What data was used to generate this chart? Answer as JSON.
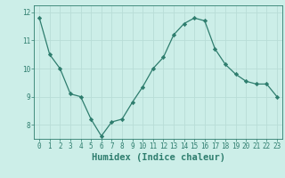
{
  "x": [
    0,
    1,
    2,
    3,
    4,
    5,
    6,
    7,
    8,
    9,
    10,
    11,
    12,
    13,
    14,
    15,
    16,
    17,
    18,
    19,
    20,
    21,
    22,
    23
  ],
  "y": [
    11.8,
    10.5,
    10.0,
    9.1,
    9.0,
    8.2,
    7.6,
    8.1,
    8.2,
    8.8,
    9.35,
    10.0,
    10.4,
    11.2,
    11.6,
    11.8,
    11.7,
    10.7,
    10.15,
    9.8,
    9.55,
    9.45,
    9.45,
    9.0
  ],
  "line_color": "#2e7d6e",
  "marker": "D",
  "marker_size": 2.2,
  "xlabel": "Humidex (Indice chaleur)",
  "ylim": [
    7.5,
    12.25
  ],
  "xlim": [
    -0.5,
    23.5
  ],
  "yticks": [
    8,
    9,
    10,
    11,
    12
  ],
  "xticks": [
    0,
    1,
    2,
    3,
    4,
    5,
    6,
    7,
    8,
    9,
    10,
    11,
    12,
    13,
    14,
    15,
    16,
    17,
    18,
    19,
    20,
    21,
    22,
    23
  ],
  "bg_color": "#cceee8",
  "grid_color": "#b8ddd7",
  "tick_fontsize": 5.5,
  "xlabel_fontsize": 7.5,
  "linewidth": 0.9
}
